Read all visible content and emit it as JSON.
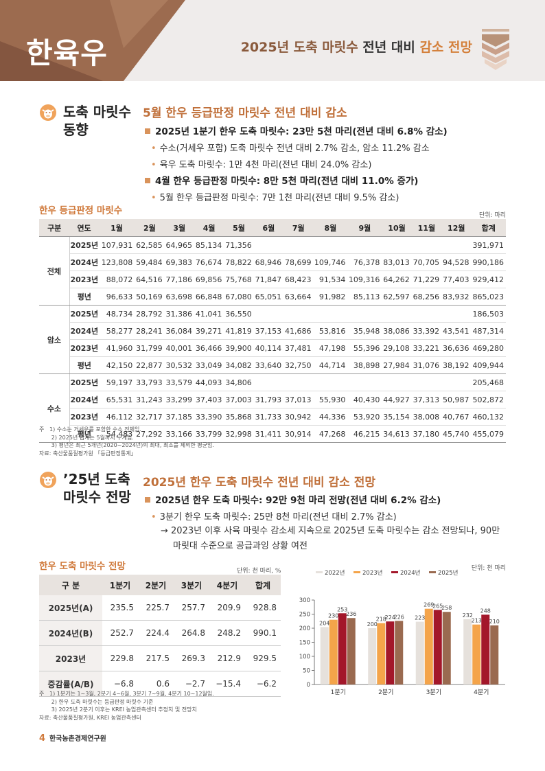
{
  "header": {
    "category": "한육우",
    "title_prefix": "2025년 도축 마릿수",
    "title_mid": " 전년 대비 ",
    "title_suffix": "감소 전망"
  },
  "section1": {
    "heading_line1": "도축 마릿수",
    "heading_line2": "동향",
    "subheading": "5월 한우 등급판정 마릿수 전년 대비 감소",
    "bullet1": "2025년 1분기 한우 도축 마릿수: 23만 5천 마리(전년 대비 6.8% 감소)",
    "bullet1_sub1": "수소(거세우 포함) 도축 마릿수 전년 대비 2.7% 감소, 암소 11.2% 감소",
    "bullet1_sub2": "육우 도축 마릿수: 1만 4천 마리(전년 대비 24.0% 감소)",
    "bullet2": "4월 한우 등급판정 마릿수: 8만 5천 마리(전년 대비 11.0% 증가)",
    "bullet2_sub1": "5월 한우 등급판정 마릿수: 7만 1천 마리(전년 대비 9.5% 감소)"
  },
  "table1": {
    "title": "한우 등급판정 마릿수",
    "unit": "단위: 마리",
    "headers": [
      "구분",
      "연도",
      "1월",
      "2월",
      "3월",
      "4월",
      "5월",
      "6월",
      "7월",
      "8월",
      "9월",
      "10월",
      "11월",
      "12월",
      "합계"
    ],
    "groups": [
      {
        "name": "전체",
        "rows": [
          [
            "2025년",
            "107,931",
            "62,585",
            "64,965",
            "85,134",
            "71,356",
            "",
            "",
            "",
            "",
            "",
            "",
            "",
            "391,971"
          ],
          [
            "2024년",
            "123,808",
            "59,484",
            "69,383",
            "76,674",
            "78,822",
            "68,946",
            "78,699",
            "109,746",
            "76,378",
            "83,013",
            "70,705",
            "94,528",
            "990,186"
          ],
          [
            "2023년",
            "88,072",
            "64,516",
            "77,186",
            "69,856",
            "75,768",
            "71,847",
            "68,423",
            "91,534",
            "109,316",
            "64,262",
            "71,229",
            "77,403",
            "929,412"
          ],
          [
            "평년",
            "96,633",
            "50,169",
            "63,698",
            "66,848",
            "67,080",
            "65,051",
            "63,664",
            "91,982",
            "85,113",
            "62,597",
            "68,256",
            "83,932",
            "865,023"
          ]
        ]
      },
      {
        "name": "암소",
        "rows": [
          [
            "2025년",
            "48,734",
            "28,792",
            "31,386",
            "41,041",
            "36,550",
            "",
            "",
            "",
            "",
            "",
            "",
            "",
            "186,503"
          ],
          [
            "2024년",
            "58,277",
            "28,241",
            "36,084",
            "39,271",
            "41,819",
            "37,153",
            "41,686",
            "53,816",
            "35,948",
            "38,086",
            "33,392",
            "43,541",
            "487,314"
          ],
          [
            "2023년",
            "41,960",
            "31,799",
            "40,001",
            "36,466",
            "39,900",
            "40,114",
            "37,481",
            "47,198",
            "55,396",
            "29,108",
            "33,221",
            "36,636",
            "469,280"
          ],
          [
            "평년",
            "42,150",
            "22,877",
            "30,532",
            "33,049",
            "34,082",
            "33,640",
            "32,750",
            "44,714",
            "38,898",
            "27,984",
            "31,076",
            "38,192",
            "409,944"
          ]
        ]
      },
      {
        "name": "수소",
        "rows": [
          [
            "2025년",
            "59,197",
            "33,793",
            "33,579",
            "44,093",
            "34,806",
            "",
            "",
            "",
            "",
            "",
            "",
            "",
            "205,468"
          ],
          [
            "2024년",
            "65,531",
            "31,243",
            "33,299",
            "37,403",
            "37,003",
            "31,793",
            "37,013",
            "55,930",
            "40,430",
            "44,927",
            "37,313",
            "50,987",
            "502,872"
          ],
          [
            "2023년",
            "46,112",
            "32,717",
            "37,185",
            "33,390",
            "35,868",
            "31,733",
            "30,942",
            "44,336",
            "53,920",
            "35,154",
            "38,008",
            "40,767",
            "460,132"
          ],
          [
            "평년",
            "54,483",
            "27,292",
            "33,166",
            "33,799",
            "32,998",
            "31,411",
            "30,914",
            "47,268",
            "46,215",
            "34,613",
            "37,180",
            "45,740",
            "455,079"
          ]
        ]
      }
    ],
    "notes": "주   1) 수소는 거세우를 포함한 수소 전체임.\n       2) 2025년 합계는 5월까지 누계임.\n       3) 평년은 최근 5개년(2020~2024년)의 최대, 최소를 제외한 평균임.\n자료: 축산물품질평가원 「등급판정통계」"
  },
  "section2": {
    "heading_line1": "’25년 도축",
    "heading_line2": "마릿수 전망",
    "subheading": "2025년 한우 도축 마릿수 전년 대비 감소 전망",
    "bullet1": "2025년 한우 도축 마릿수: 92만 9천 마리 전망(전년 대비 6.2% 감소)",
    "bullet1_sub1": "3분기 한우 도축 마릿수: 25만 8천 마리(전년 대비 2.7% 감소)",
    "arrow_line1": "→ 2023년 이후 사육 마릿수 감소세 지속으로 2025년 도축 마릿수는 감소 전망되나, 90만",
    "arrow_line2": "마릿대 수준으로 공급과잉 상황 여전"
  },
  "table2": {
    "title": "한우 도축 마릿수 전망",
    "unit": "단위: 천 마리, %",
    "headers": [
      "구 분",
      "1분기",
      "2분기",
      "3분기",
      "4분기",
      "합계"
    ],
    "rows": [
      [
        "2025년(A)",
        "235.5",
        "225.7",
        "257.7",
        "209.9",
        "928.8"
      ],
      [
        "2024년(B)",
        "252.7",
        "224.4",
        "264.8",
        "248.2",
        "990.1"
      ],
      [
        "2023년",
        "229.8",
        "217.5",
        "269.3",
        "212.9",
        "929.5"
      ],
      [
        "증감률(A/B)",
        "−6.8",
        "0.6",
        "−2.7",
        "−15.4",
        "−6.2"
      ]
    ],
    "notes": "주   1) 1분기는 1~3월, 2분기 4~6월, 3분기 7~9월, 4분기 10~12월임.\n       2) 한우 도축 마릿수는 등급판정 마릿수 기준\n       3) 2025년 2분기 이후는 KREI 농업관측센터 추정치 및 전망치\n자료: 축산물품질평가원, KREI 농업관측센터"
  },
  "chart_data": {
    "type": "bar",
    "unit_label": "단위: 천 마리",
    "categories": [
      "1분기",
      "2분기",
      "3분기",
      "4분기"
    ],
    "series": [
      {
        "name": "2022년",
        "color": "#e6e1dc",
        "values": [
          204,
          200,
          223,
          232
        ]
      },
      {
        "name": "2023년",
        "color": "#f4a44a",
        "values": [
          230,
          218,
          269,
          213
        ]
      },
      {
        "name": "2024년",
        "color": "#a3172a",
        "values": [
          253,
          224,
          265,
          248
        ]
      },
      {
        "name": "2025년",
        "color": "#9a6a50",
        "values": [
          236,
          226,
          258,
          210
        ]
      }
    ],
    "ylim": [
      0,
      300
    ],
    "yticks": [
      "0",
      "50",
      "100",
      "150",
      "200",
      "250",
      "300"
    ],
    "legend": "top"
  },
  "footer": {
    "page": "4",
    "org": "한국농촌경제연구원"
  }
}
